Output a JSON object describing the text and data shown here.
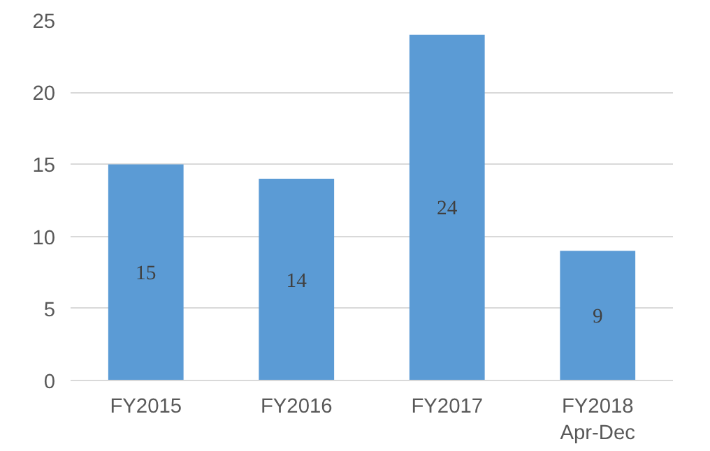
{
  "chart_data": {
    "type": "bar",
    "categories": [
      "FY2015",
      "FY2016",
      "FY2017",
      "FY2018\nApr-Dec"
    ],
    "values": [
      15,
      14,
      24,
      9
    ],
    "color": "#5b9bd5",
    "ylim": [
      0,
      25
    ],
    "yticks": [
      0,
      5,
      10,
      15,
      20,
      25
    ],
    "grid": "y",
    "data_labels": true
  }
}
